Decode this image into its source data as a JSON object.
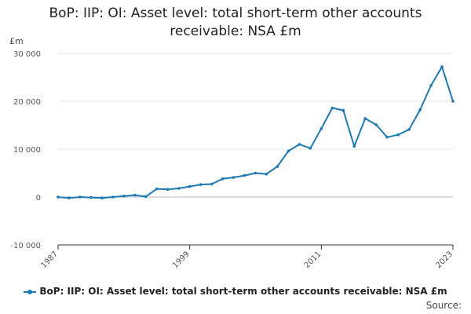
{
  "title_line1": "BoP: IIP: OI: Asset level: total short-term other accounts",
  "title_line2": "receivable: NSA £m",
  "source_label": "Source:",
  "colors": {
    "series": "#1d7ab5",
    "grid": "#e6e6e6",
    "axis": "#333333",
    "text": "#555555"
  },
  "chart_data": {
    "type": "line",
    "title": "BoP: IIP: OI: Asset level: total short-term other accounts receivable: NSA £m",
    "xlabel": "",
    "ylabel": "£m",
    "ylim": [
      -10000,
      30000
    ],
    "yticks": [
      -10000,
      0,
      10000,
      20000,
      30000
    ],
    "ytick_labels": [
      "-10 000",
      "0",
      "10 000",
      "20 000",
      "30 000"
    ],
    "xlim": [
      1987,
      2023
    ],
    "xticks": [
      1987,
      1999,
      2011,
      2023
    ],
    "xtick_labels": [
      "1987",
      "1999",
      "2011",
      "2023"
    ],
    "grid": true,
    "legend": "bottom",
    "series": [
      {
        "name": "BoP: IIP: OI: Asset level: total short-term other accounts receivable: NSA £m",
        "x": [
          1987,
          1988,
          1989,
          1990,
          1991,
          1992,
          1993,
          1994,
          1995,
          1996,
          1997,
          1998,
          1999,
          2000,
          2001,
          2002,
          2003,
          2004,
          2005,
          2006,
          2007,
          2008,
          2009,
          2010,
          2011,
          2012,
          2013,
          2014,
          2015,
          2016,
          2017,
          2018,
          2019,
          2020,
          2021,
          2022,
          2023
        ],
        "values": [
          0,
          -200,
          0,
          -100,
          -200,
          0,
          200,
          400,
          100,
          1700,
          1600,
          1800,
          2200,
          2600,
          2700,
          3800,
          4100,
          4500,
          5000,
          4800,
          6400,
          9600,
          11000,
          10200,
          14300,
          18600,
          18100,
          10600,
          16400,
          15100,
          12500,
          13000,
          14100,
          18200,
          23300,
          27200,
          20000
        ]
      }
    ]
  }
}
